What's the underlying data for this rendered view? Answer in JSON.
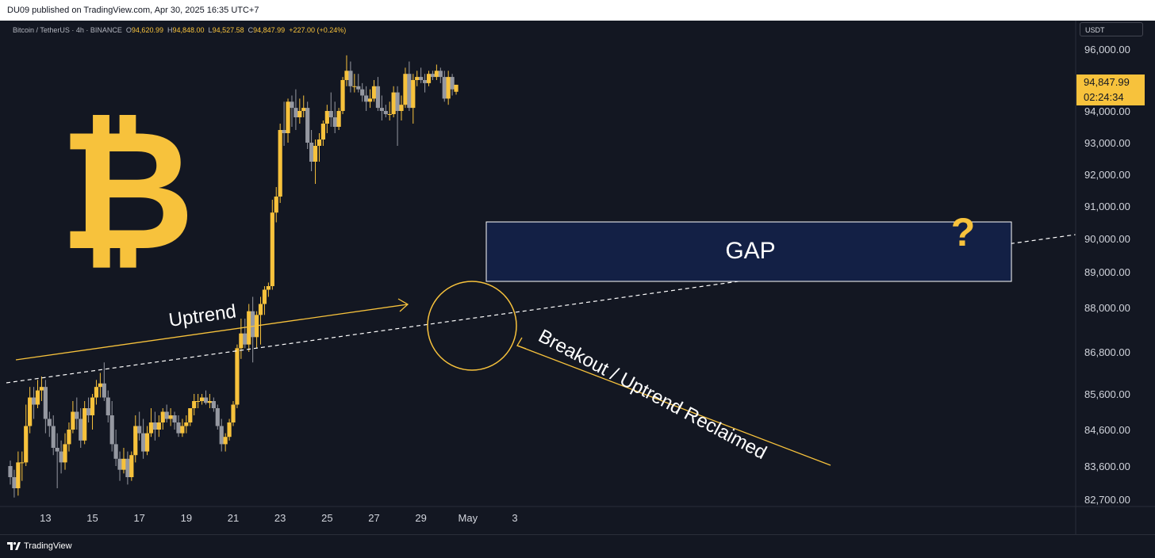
{
  "header": {
    "published": "DU09 published on TradingView.com, Apr 30, 2025 16:35 UTC+7"
  },
  "legend": {
    "symbol": "Bitcoin / TetherUS · 4h · BINANCE",
    "o_label": "O",
    "o": "94,620.99",
    "h_label": "H",
    "h": "94,848.00",
    "l_label": "L",
    "l": "94,527.58",
    "c_label": "C",
    "c": "94,847.99",
    "change": "+227.00 (+0.24%)"
  },
  "price_axis": {
    "currency": "USDT",
    "last_price": "94,847.99",
    "countdown": "02:24:34"
  },
  "annotations": {
    "uptrend": "Uptrend",
    "gap": "GAP",
    "question": "?",
    "breakout": "Breakout / Uptrend Reclaimed"
  },
  "footer": {
    "brand": "TradingView"
  },
  "colors": {
    "background": "#131722",
    "bull": "#f7c23c",
    "bear": "#9598a1",
    "accent": "#f7c23c",
    "gap_fill": "#132045",
    "gap_border": "#ffffff"
  },
  "chart_data": {
    "type": "candlestick",
    "interval": "4h",
    "symbol": "BTCUSDT",
    "y_ticks": [
      {
        "label": "96,000.00",
        "value": 96000
      },
      {
        "label": "94,000.00",
        "value": 94000
      },
      {
        "label": "93,000.00",
        "value": 93000
      },
      {
        "label": "92,000.00",
        "value": 92000
      },
      {
        "label": "91,000.00",
        "value": 91000
      },
      {
        "label": "90,000.00",
        "value": 90000
      },
      {
        "label": "89,000.00",
        "value": 89000
      },
      {
        "label": "88,000.00",
        "value": 88000
      },
      {
        "label": "86,800.00",
        "value": 86800
      },
      {
        "label": "85,600.00",
        "value": 85600
      },
      {
        "label": "84,600.00",
        "value": 84600
      },
      {
        "label": "83,600.00",
        "value": 83600
      },
      {
        "label": "82,700.00",
        "value": 82700
      }
    ],
    "x_ticks": [
      {
        "label": "13",
        "index": 9
      },
      {
        "label": "15",
        "index": 21
      },
      {
        "label": "17",
        "index": 33
      },
      {
        "label": "19",
        "index": 45
      },
      {
        "label": "21",
        "index": 57
      },
      {
        "label": "23",
        "index": 69
      },
      {
        "label": "25",
        "index": 81
      },
      {
        "label": "27",
        "index": 93
      },
      {
        "label": "29",
        "index": 105
      },
      {
        "label": "May",
        "index": 117
      },
      {
        "label": "3",
        "index": 129
      }
    ],
    "candles": [
      [
        83600,
        83750,
        83100,
        83300
      ],
      [
        83300,
        83500,
        82750,
        83000
      ],
      [
        83000,
        84000,
        82800,
        83700
      ],
      [
        83700,
        84000,
        83200,
        83700
      ],
      [
        83700,
        85300,
        83600,
        84700
      ],
      [
        84700,
        85800,
        84500,
        85500
      ],
      [
        85500,
        85800,
        84900,
        85300
      ],
      [
        85300,
        86000,
        85200,
        85700
      ],
      [
        85700,
        86100,
        85400,
        85800
      ],
      [
        85800,
        86000,
        84500,
        84900
      ],
      [
        84900,
        85100,
        84400,
        84700
      ],
      [
        84700,
        85000,
        83900,
        84100
      ],
      [
        84100,
        84500,
        83000,
        84000
      ],
      [
        84000,
        84300,
        83400,
        83700
      ],
      [
        83700,
        84500,
        83500,
        84200
      ],
      [
        84200,
        84800,
        84000,
        84600
      ],
      [
        84600,
        85400,
        84500,
        85100
      ],
      [
        85100,
        85500,
        84600,
        84900
      ],
      [
        84900,
        85200,
        84100,
        84300
      ],
      [
        84300,
        85400,
        84200,
        85200
      ],
      [
        85200,
        85500,
        84800,
        85000
      ],
      [
        85000,
        85600,
        84600,
        85500
      ],
      [
        85500,
        86000,
        85300,
        85800
      ],
      [
        85800,
        86200,
        85500,
        85900
      ],
      [
        85900,
        86500,
        85400,
        85500
      ],
      [
        85500,
        85700,
        84800,
        85000
      ],
      [
        85000,
        85400,
        84000,
        84200
      ],
      [
        84200,
        84600,
        83600,
        83800
      ],
      [
        83800,
        84000,
        83200,
        83500
      ],
      [
        83500,
        84100,
        83400,
        83800
      ],
      [
        83800,
        84000,
        83100,
        83300
      ],
      [
        83300,
        84000,
        83200,
        83900
      ],
      [
        83900,
        85000,
        83700,
        84700
      ],
      [
        84700,
        85100,
        84300,
        84500
      ],
      [
        84500,
        84900,
        83800,
        84000
      ],
      [
        84000,
        84700,
        83900,
        84500
      ],
      [
        84500,
        85200,
        84400,
        84800
      ],
      [
        84800,
        85100,
        84300,
        84600
      ],
      [
        84600,
        85000,
        84400,
        84800
      ],
      [
        84800,
        85200,
        84600,
        85100
      ],
      [
        85100,
        85300,
        84800,
        84900
      ],
      [
        84900,
        85200,
        84700,
        85000
      ],
      [
        85000,
        85100,
        84600,
        84800
      ],
      [
        84800,
        85000,
        84400,
        84500
      ],
      [
        84500,
        84900,
        84400,
        84700
      ],
      [
        84700,
        85000,
        84500,
        84800
      ],
      [
        84800,
        85200,
        84700,
        85200
      ],
      [
        85200,
        85600,
        85000,
        85400
      ],
      [
        85400,
        85600,
        85200,
        85400
      ],
      [
        85400,
        85600,
        85300,
        85500
      ],
      [
        85500,
        85700,
        85300,
        85350
      ],
      [
        85350,
        85600,
        85200,
        85400
      ],
      [
        85400,
        85500,
        85100,
        85200
      ],
      [
        85200,
        85300,
        84600,
        84700
      ],
      [
        84700,
        84900,
        84000,
        84200
      ],
      [
        84200,
        84500,
        84000,
        84400
      ],
      [
        84400,
        84900,
        84300,
        84800
      ],
      [
        84800,
        85400,
        84700,
        85300
      ],
      [
        85300,
        87000,
        85200,
        86900
      ],
      [
        86900,
        87700,
        86600,
        87300
      ],
      [
        87300,
        87700,
        86900,
        87000
      ],
      [
        87000,
        88100,
        86800,
        87900
      ],
      [
        87900,
        88300,
        86500,
        87200
      ],
      [
        87200,
        87900,
        86900,
        87800
      ],
      [
        87800,
        88300,
        87000,
        88100
      ],
      [
        88100,
        88600,
        87800,
        88500
      ],
      [
        88500,
        88700,
        88300,
        88600
      ],
      [
        88600,
        91200,
        88500,
        90800
      ],
      [
        90800,
        91600,
        90500,
        91300
      ],
      [
        91300,
        93600,
        91100,
        93400
      ],
      [
        93400,
        94300,
        92900,
        93300
      ],
      [
        93300,
        94400,
        93000,
        94300
      ],
      [
        94300,
        94500,
        93500,
        94100
      ],
      [
        94100,
        94700,
        93400,
        93800
      ],
      [
        93800,
        94400,
        93600,
        94000
      ],
      [
        94000,
        94500,
        93800,
        94100
      ],
      [
        94100,
        94300,
        92800,
        93000
      ],
      [
        93000,
        93400,
        92100,
        92400
      ],
      [
        92400,
        93100,
        91700,
        92900
      ],
      [
        92900,
        93300,
        92400,
        93100
      ],
      [
        93100,
        93700,
        92900,
        93600
      ],
      [
        93600,
        94200,
        93300,
        94000
      ],
      [
        94000,
        94600,
        93500,
        93800
      ],
      [
        93800,
        94300,
        93300,
        93500
      ],
      [
        93500,
        94100,
        93400,
        94000
      ],
      [
        94000,
        95100,
        93900,
        95000
      ],
      [
        95000,
        95800,
        94800,
        95300
      ],
      [
        95300,
        95600,
        94600,
        94800
      ],
      [
        94800,
        95200,
        94600,
        94800
      ],
      [
        94800,
        95200,
        94600,
        94700
      ],
      [
        94700,
        94900,
        94300,
        94500
      ],
      [
        94500,
        94800,
        94000,
        94300
      ],
      [
        94300,
        94700,
        94100,
        94400
      ],
      [
        94400,
        95000,
        94300,
        94800
      ],
      [
        94800,
        95100,
        94000,
        94100
      ],
      [
        94100,
        94500,
        93700,
        94000
      ],
      [
        94000,
        94200,
        93800,
        93900
      ],
      [
        93900,
        94300,
        93700,
        93900
      ],
      [
        93900,
        94800,
        93800,
        94600
      ],
      [
        94600,
        94800,
        92900,
        94000
      ],
      [
        94000,
        94500,
        93700,
        94200
      ],
      [
        94200,
        95400,
        94100,
        95200
      ],
      [
        95200,
        95600,
        94000,
        94100
      ],
      [
        94100,
        95200,
        93600,
        95000
      ],
      [
        95000,
        95300,
        94800,
        95100
      ],
      [
        95100,
        95400,
        94900,
        95000
      ],
      [
        95000,
        95200,
        94600,
        94900
      ],
      [
        94900,
        95300,
        94800,
        95200
      ],
      [
        95200,
        95300,
        95000,
        95100
      ],
      [
        95100,
        95500,
        95000,
        95300
      ],
      [
        95300,
        95400,
        94900,
        95100
      ],
      [
        95100,
        95300,
        94300,
        94400
      ],
      [
        94400,
        95300,
        94200,
        95100
      ],
      [
        95100,
        95200,
        94500,
        94700
      ],
      [
        94620.99,
        94848,
        94527.58,
        94847.99
      ]
    ]
  }
}
